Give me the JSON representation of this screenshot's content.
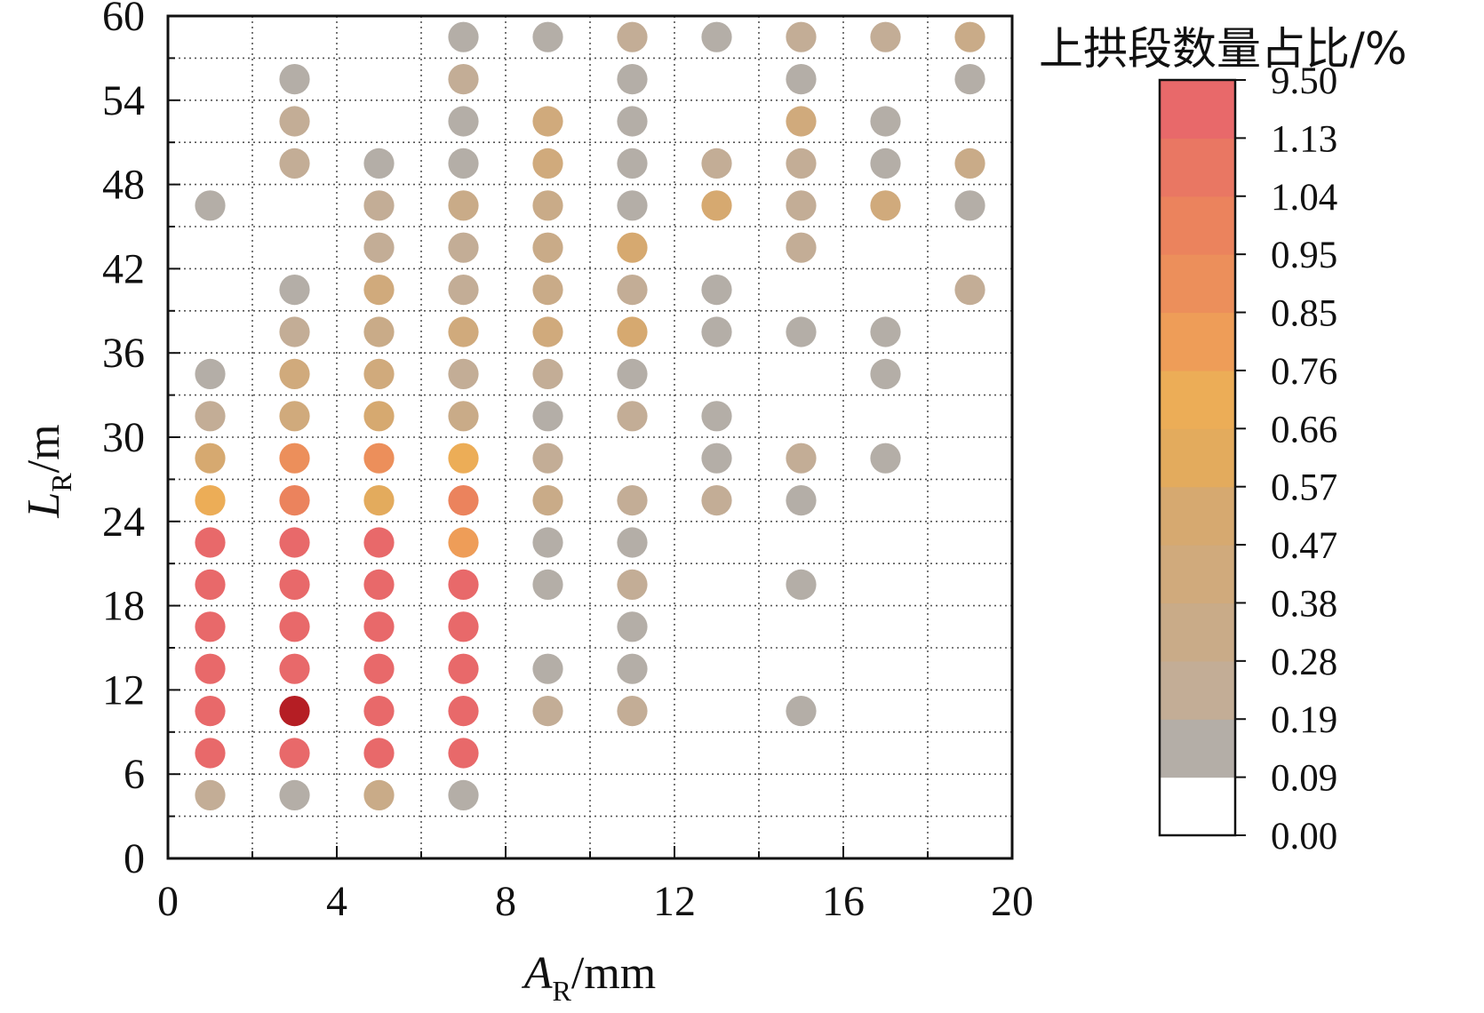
{
  "chart_data": {
    "type": "scatter",
    "xlabel": {
      "main": "A",
      "sub": "R",
      "unit": "/mm"
    },
    "ylabel": {
      "main": "L",
      "sub": "R",
      "unit": "/m"
    },
    "xlim": [
      0,
      20
    ],
    "ylim": [
      0,
      60
    ],
    "xticks": [
      "0",
      "4",
      "8",
      "12",
      "16",
      "20"
    ],
    "yticks": [
      "0",
      "6",
      "12",
      "18",
      "24",
      "30",
      "36",
      "42",
      "48",
      "54",
      "60"
    ],
    "grid": true,
    "colorbar": {
      "title": "上拱段数量占比/%",
      "placement": "right",
      "labels": [
        "0.00",
        "0.09",
        "0.19",
        "0.28",
        "0.38",
        "0.47",
        "0.57",
        "0.66",
        "0.76",
        "0.85",
        "0.95",
        "1.04",
        "1.13",
        "9.50"
      ],
      "colors": [
        "#ffffff",
        "#b4aea7",
        "#c3ad96",
        "#c9ab88",
        "#d0aa7c",
        "#d6a970",
        "#e3ab5d",
        "#ecad57",
        "#ee9d58",
        "#ec8f5b",
        "#eb835d",
        "#e97763",
        "#e8696a",
        "#b51e24"
      ]
    },
    "points": [
      {
        "x": 1,
        "y": 4.5,
        "level": 2
      },
      {
        "x": 3,
        "y": 4.5,
        "level": 1
      },
      {
        "x": 5,
        "y": 4.5,
        "level": 3
      },
      {
        "x": 7,
        "y": 4.5,
        "level": 1
      },
      {
        "x": 1,
        "y": 7.5,
        "level": 12
      },
      {
        "x": 3,
        "y": 7.5,
        "level": 12
      },
      {
        "x": 5,
        "y": 7.5,
        "level": 12
      },
      {
        "x": 7,
        "y": 7.5,
        "level": 12
      },
      {
        "x": 1,
        "y": 10.5,
        "level": 12
      },
      {
        "x": 3,
        "y": 10.5,
        "level": 13
      },
      {
        "x": 5,
        "y": 10.5,
        "level": 12
      },
      {
        "x": 7,
        "y": 10.5,
        "level": 12
      },
      {
        "x": 9,
        "y": 10.5,
        "level": 2
      },
      {
        "x": 11,
        "y": 10.5,
        "level": 2
      },
      {
        "x": 15,
        "y": 10.5,
        "level": 1
      },
      {
        "x": 1,
        "y": 13.5,
        "level": 12
      },
      {
        "x": 3,
        "y": 13.5,
        "level": 12
      },
      {
        "x": 5,
        "y": 13.5,
        "level": 12
      },
      {
        "x": 7,
        "y": 13.5,
        "level": 12
      },
      {
        "x": 9,
        "y": 13.5,
        "level": 1
      },
      {
        "x": 11,
        "y": 13.5,
        "level": 1
      },
      {
        "x": 1,
        "y": 16.5,
        "level": 12
      },
      {
        "x": 3,
        "y": 16.5,
        "level": 12
      },
      {
        "x": 5,
        "y": 16.5,
        "level": 12
      },
      {
        "x": 7,
        "y": 16.5,
        "level": 12
      },
      {
        "x": 11,
        "y": 16.5,
        "level": 1
      },
      {
        "x": 1,
        "y": 19.5,
        "level": 12
      },
      {
        "x": 3,
        "y": 19.5,
        "level": 12
      },
      {
        "x": 5,
        "y": 19.5,
        "level": 12
      },
      {
        "x": 7,
        "y": 19.5,
        "level": 12
      },
      {
        "x": 9,
        "y": 19.5,
        "level": 1
      },
      {
        "x": 11,
        "y": 19.5,
        "level": 2
      },
      {
        "x": 15,
        "y": 19.5,
        "level": 1
      },
      {
        "x": 1,
        "y": 22.5,
        "level": 12
      },
      {
        "x": 3,
        "y": 22.5,
        "level": 12
      },
      {
        "x": 5,
        "y": 22.5,
        "level": 12
      },
      {
        "x": 7,
        "y": 22.5,
        "level": 8
      },
      {
        "x": 9,
        "y": 22.5,
        "level": 1
      },
      {
        "x": 11,
        "y": 22.5,
        "level": 1
      },
      {
        "x": 1,
        "y": 25.5,
        "level": 7
      },
      {
        "x": 3,
        "y": 25.5,
        "level": 10
      },
      {
        "x": 5,
        "y": 25.5,
        "level": 6
      },
      {
        "x": 7,
        "y": 25.5,
        "level": 10
      },
      {
        "x": 9,
        "y": 25.5,
        "level": 3
      },
      {
        "x": 11,
        "y": 25.5,
        "level": 2
      },
      {
        "x": 13,
        "y": 25.5,
        "level": 2
      },
      {
        "x": 15,
        "y": 25.5,
        "level": 1
      },
      {
        "x": 1,
        "y": 28.5,
        "level": 5
      },
      {
        "x": 3,
        "y": 28.5,
        "level": 9
      },
      {
        "x": 5,
        "y": 28.5,
        "level": 9
      },
      {
        "x": 7,
        "y": 28.5,
        "level": 7
      },
      {
        "x": 9,
        "y": 28.5,
        "level": 2
      },
      {
        "x": 13,
        "y": 28.5,
        "level": 1
      },
      {
        "x": 15,
        "y": 28.5,
        "level": 2
      },
      {
        "x": 17,
        "y": 28.5,
        "level": 1
      },
      {
        "x": 1,
        "y": 31.5,
        "level": 2
      },
      {
        "x": 3,
        "y": 31.5,
        "level": 4
      },
      {
        "x": 5,
        "y": 31.5,
        "level": 5
      },
      {
        "x": 7,
        "y": 31.5,
        "level": 3
      },
      {
        "x": 9,
        "y": 31.5,
        "level": 1
      },
      {
        "x": 11,
        "y": 31.5,
        "level": 2
      },
      {
        "x": 13,
        "y": 31.5,
        "level": 1
      },
      {
        "x": 1,
        "y": 34.5,
        "level": 1
      },
      {
        "x": 3,
        "y": 34.5,
        "level": 4
      },
      {
        "x": 5,
        "y": 34.5,
        "level": 4
      },
      {
        "x": 7,
        "y": 34.5,
        "level": 2
      },
      {
        "x": 9,
        "y": 34.5,
        "level": 2
      },
      {
        "x": 11,
        "y": 34.5,
        "level": 1
      },
      {
        "x": 17,
        "y": 34.5,
        "level": 1
      },
      {
        "x": 3,
        "y": 37.5,
        "level": 2
      },
      {
        "x": 5,
        "y": 37.5,
        "level": 3
      },
      {
        "x": 7,
        "y": 37.5,
        "level": 4
      },
      {
        "x": 9,
        "y": 37.5,
        "level": 4
      },
      {
        "x": 11,
        "y": 37.5,
        "level": 5
      },
      {
        "x": 13,
        "y": 37.5,
        "level": 1
      },
      {
        "x": 15,
        "y": 37.5,
        "level": 1
      },
      {
        "x": 17,
        "y": 37.5,
        "level": 1
      },
      {
        "x": 3,
        "y": 40.5,
        "level": 1
      },
      {
        "x": 5,
        "y": 40.5,
        "level": 4
      },
      {
        "x": 7,
        "y": 40.5,
        "level": 2
      },
      {
        "x": 9,
        "y": 40.5,
        "level": 3
      },
      {
        "x": 11,
        "y": 40.5,
        "level": 2
      },
      {
        "x": 13,
        "y": 40.5,
        "level": 1
      },
      {
        "x": 19,
        "y": 40.5,
        "level": 2
      },
      {
        "x": 5,
        "y": 43.5,
        "level": 2
      },
      {
        "x": 7,
        "y": 43.5,
        "level": 2
      },
      {
        "x": 9,
        "y": 43.5,
        "level": 3
      },
      {
        "x": 11,
        "y": 43.5,
        "level": 5
      },
      {
        "x": 15,
        "y": 43.5,
        "level": 2
      },
      {
        "x": 1,
        "y": 46.5,
        "level": 1
      },
      {
        "x": 5,
        "y": 46.5,
        "level": 2
      },
      {
        "x": 7,
        "y": 46.5,
        "level": 3
      },
      {
        "x": 9,
        "y": 46.5,
        "level": 3
      },
      {
        "x": 11,
        "y": 46.5,
        "level": 1
      },
      {
        "x": 13,
        "y": 46.5,
        "level": 5
      },
      {
        "x": 15,
        "y": 46.5,
        "level": 2
      },
      {
        "x": 17,
        "y": 46.5,
        "level": 4
      },
      {
        "x": 19,
        "y": 46.5,
        "level": 1
      },
      {
        "x": 3,
        "y": 49.5,
        "level": 2
      },
      {
        "x": 5,
        "y": 49.5,
        "level": 1
      },
      {
        "x": 7,
        "y": 49.5,
        "level": 1
      },
      {
        "x": 9,
        "y": 49.5,
        "level": 4
      },
      {
        "x": 11,
        "y": 49.5,
        "level": 1
      },
      {
        "x": 13,
        "y": 49.5,
        "level": 2
      },
      {
        "x": 15,
        "y": 49.5,
        "level": 2
      },
      {
        "x": 17,
        "y": 49.5,
        "level": 1
      },
      {
        "x": 19,
        "y": 49.5,
        "level": 3
      },
      {
        "x": 3,
        "y": 52.5,
        "level": 2
      },
      {
        "x": 7,
        "y": 52.5,
        "level": 1
      },
      {
        "x": 9,
        "y": 52.5,
        "level": 4
      },
      {
        "x": 11,
        "y": 52.5,
        "level": 1
      },
      {
        "x": 15,
        "y": 52.5,
        "level": 4
      },
      {
        "x": 17,
        "y": 52.5,
        "level": 1
      },
      {
        "x": 3,
        "y": 55.5,
        "level": 1
      },
      {
        "x": 7,
        "y": 55.5,
        "level": 2
      },
      {
        "x": 11,
        "y": 55.5,
        "level": 1
      },
      {
        "x": 15,
        "y": 55.5,
        "level": 1
      },
      {
        "x": 19,
        "y": 55.5,
        "level": 1
      },
      {
        "x": 7,
        "y": 58.5,
        "level": 1
      },
      {
        "x": 9,
        "y": 58.5,
        "level": 1
      },
      {
        "x": 11,
        "y": 58.5,
        "level": 2
      },
      {
        "x": 13,
        "y": 58.5,
        "level": 1
      },
      {
        "x": 15,
        "y": 58.5,
        "level": 2
      },
      {
        "x": 17,
        "y": 58.5,
        "level": 2
      },
      {
        "x": 19,
        "y": 58.5,
        "level": 3
      }
    ]
  }
}
